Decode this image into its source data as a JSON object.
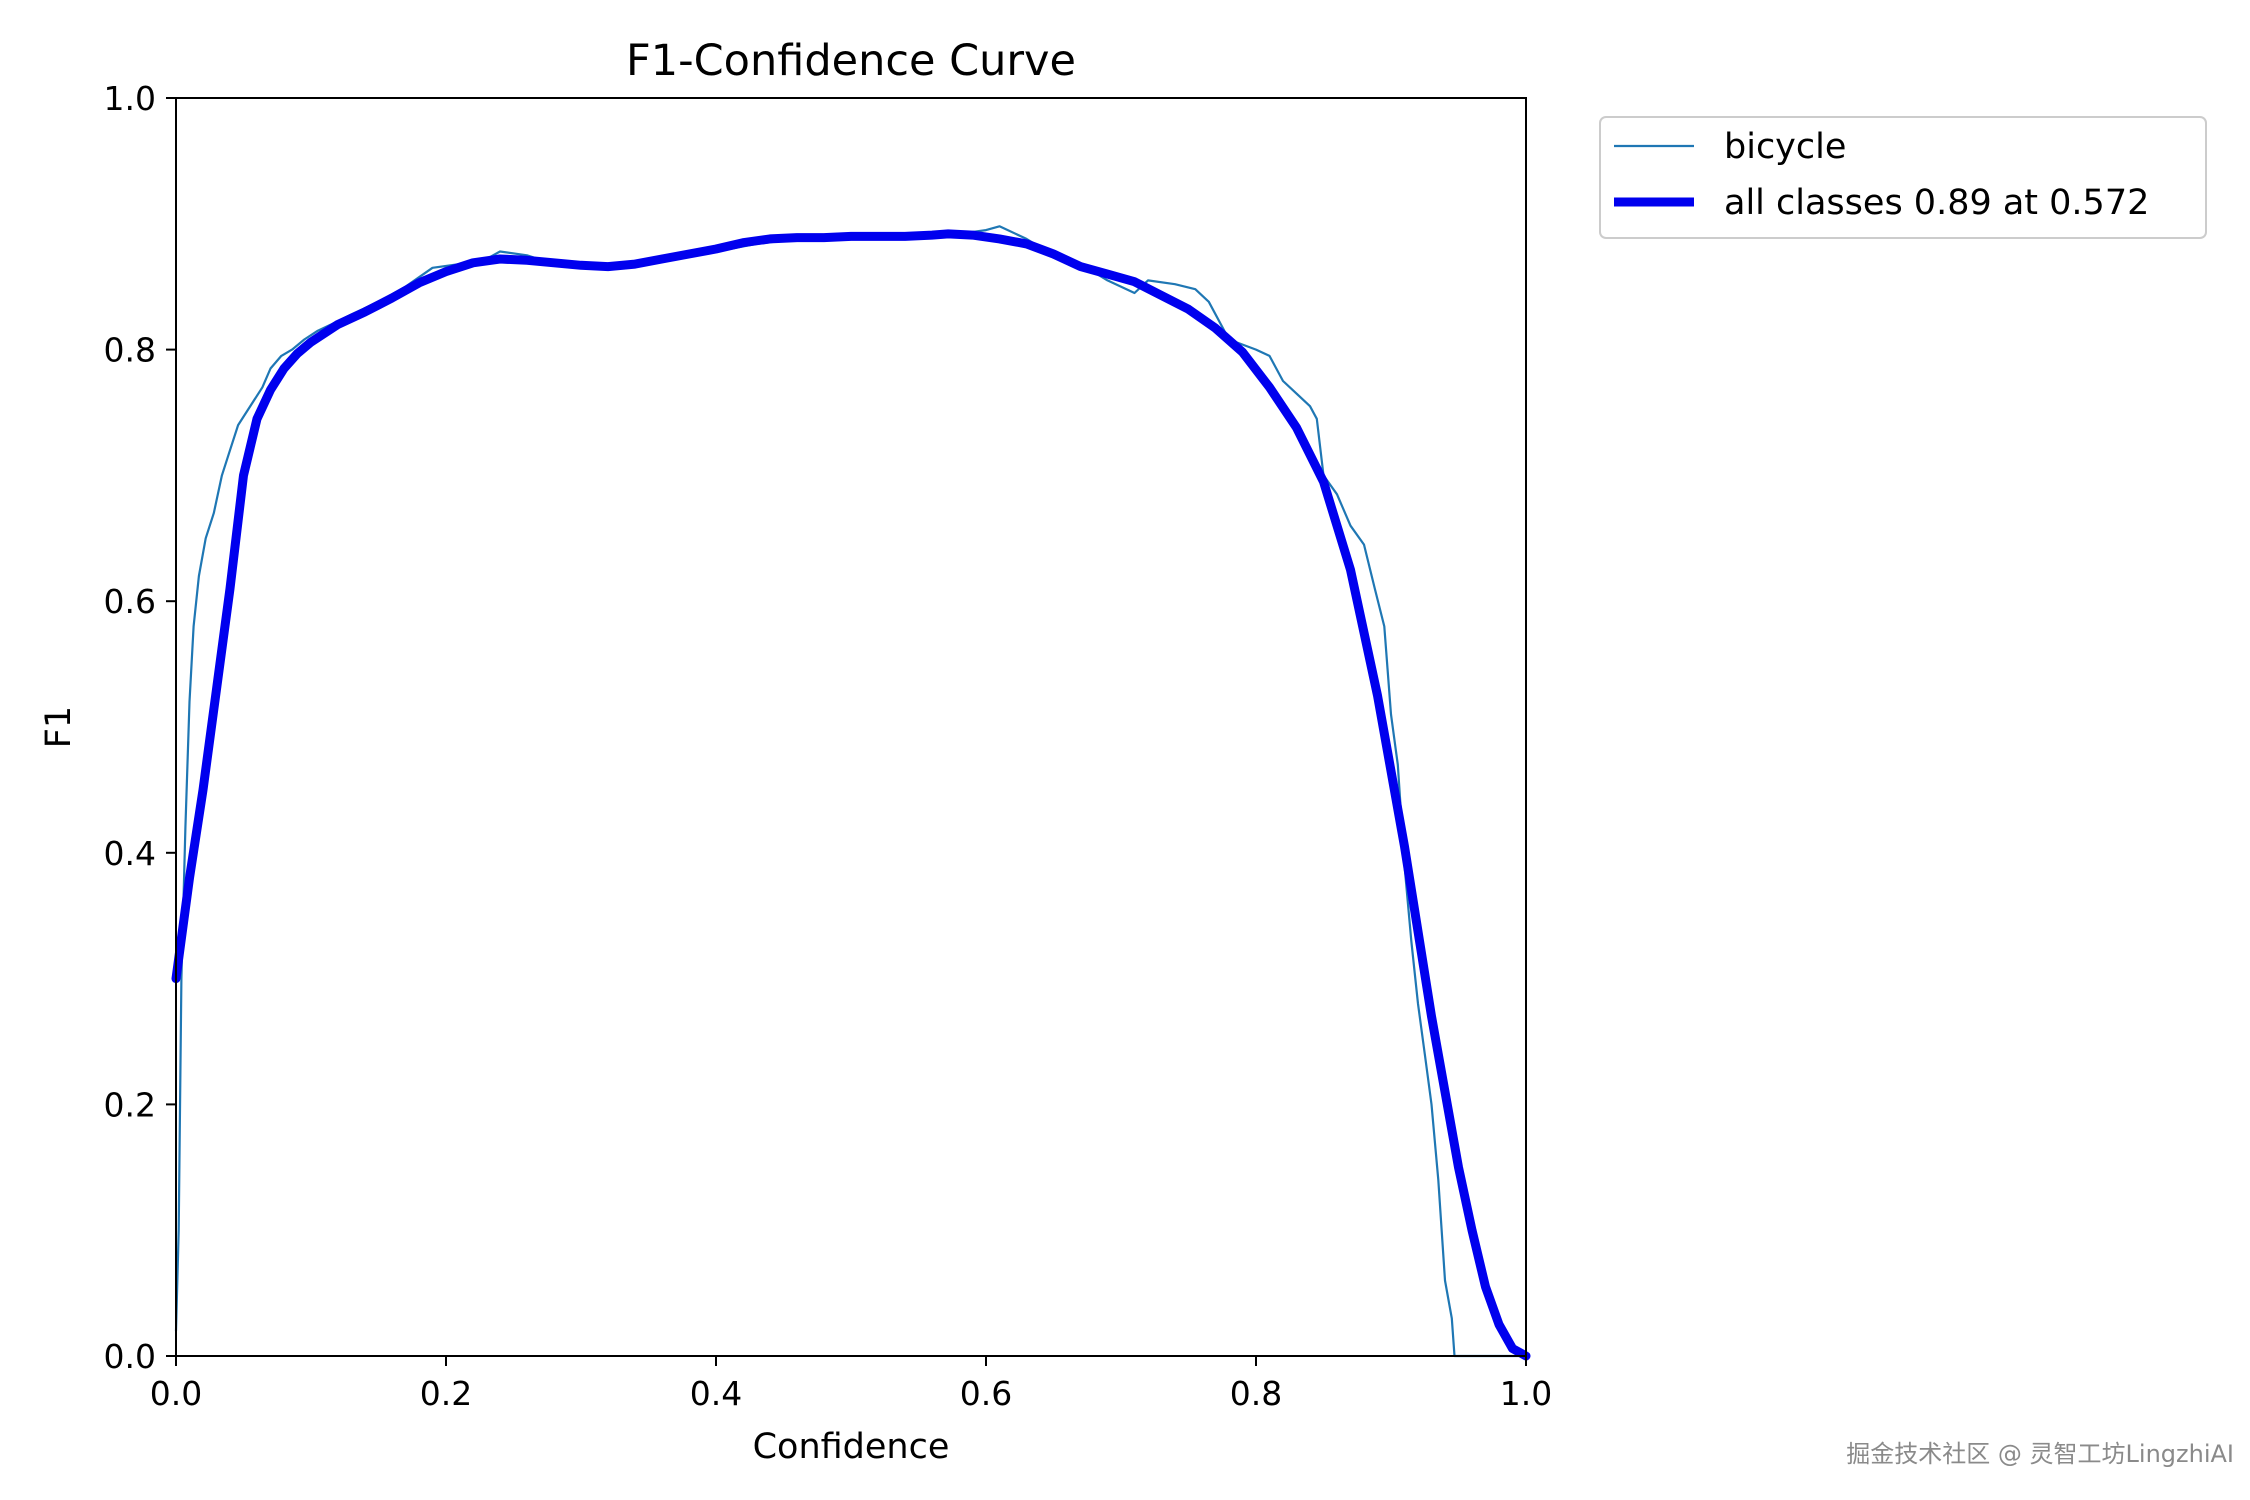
{
  "chart_data": {
    "type": "line",
    "title": "F1-Confidence Curve",
    "xlabel": "Confidence",
    "ylabel": "F1",
    "xlim": [
      0.0,
      1.0
    ],
    "ylim": [
      0.0,
      1.0
    ],
    "x_ticks": [
      "0.0",
      "0.2",
      "0.4",
      "0.6",
      "0.8",
      "1.0"
    ],
    "y_ticks": [
      "0.0",
      "0.2",
      "0.4",
      "0.6",
      "0.8",
      "1.0"
    ],
    "grid": false,
    "legend_position": "outside-top-right",
    "series": [
      {
        "name": "bicycle",
        "color": "#1f77b4",
        "points": [
          [
            0.0,
            0.02
          ],
          [
            0.002,
            0.1
          ],
          [
            0.004,
            0.3
          ],
          [
            0.007,
            0.42
          ],
          [
            0.01,
            0.52
          ],
          [
            0.013,
            0.58
          ],
          [
            0.017,
            0.62
          ],
          [
            0.022,
            0.65
          ],
          [
            0.028,
            0.67
          ],
          [
            0.034,
            0.7
          ],
          [
            0.04,
            0.72
          ],
          [
            0.046,
            0.74
          ],
          [
            0.052,
            0.75
          ],
          [
            0.058,
            0.76
          ],
          [
            0.064,
            0.77
          ],
          [
            0.07,
            0.785
          ],
          [
            0.078,
            0.795
          ],
          [
            0.086,
            0.8
          ],
          [
            0.095,
            0.808
          ],
          [
            0.105,
            0.815
          ],
          [
            0.115,
            0.82
          ],
          [
            0.13,
            0.828
          ],
          [
            0.15,
            0.838
          ],
          [
            0.17,
            0.85
          ],
          [
            0.19,
            0.865
          ],
          [
            0.21,
            0.868
          ],
          [
            0.23,
            0.872
          ],
          [
            0.24,
            0.878
          ],
          [
            0.26,
            0.875
          ],
          [
            0.28,
            0.868
          ],
          [
            0.3,
            0.865
          ],
          [
            0.32,
            0.866
          ],
          [
            0.35,
            0.868
          ],
          [
            0.38,
            0.874
          ],
          [
            0.4,
            0.878
          ],
          [
            0.43,
            0.884
          ],
          [
            0.46,
            0.888
          ],
          [
            0.49,
            0.892
          ],
          [
            0.52,
            0.89
          ],
          [
            0.55,
            0.889
          ],
          [
            0.58,
            0.892
          ],
          [
            0.6,
            0.895
          ],
          [
            0.61,
            0.898
          ],
          [
            0.63,
            0.888
          ],
          [
            0.65,
            0.875
          ],
          [
            0.67,
            0.868
          ],
          [
            0.69,
            0.855
          ],
          [
            0.71,
            0.845
          ],
          [
            0.72,
            0.855
          ],
          [
            0.74,
            0.852
          ],
          [
            0.755,
            0.848
          ],
          [
            0.765,
            0.838
          ],
          [
            0.78,
            0.808
          ],
          [
            0.8,
            0.8
          ],
          [
            0.81,
            0.795
          ],
          [
            0.82,
            0.775
          ],
          [
            0.83,
            0.765
          ],
          [
            0.84,
            0.755
          ],
          [
            0.845,
            0.745
          ],
          [
            0.85,
            0.7
          ],
          [
            0.86,
            0.685
          ],
          [
            0.87,
            0.66
          ],
          [
            0.88,
            0.645
          ],
          [
            0.888,
            0.61
          ],
          [
            0.895,
            0.58
          ],
          [
            0.9,
            0.51
          ],
          [
            0.905,
            0.47
          ],
          [
            0.91,
            0.39
          ],
          [
            0.915,
            0.33
          ],
          [
            0.92,
            0.28
          ],
          [
            0.925,
            0.24
          ],
          [
            0.93,
            0.2
          ],
          [
            0.935,
            0.14
          ],
          [
            0.94,
            0.06
          ],
          [
            0.945,
            0.03
          ],
          [
            0.947,
            0.0
          ],
          [
            1.0,
            0.0
          ]
        ]
      },
      {
        "name": "all classes 0.89 at 0.572",
        "color": "#0000ee",
        "points": [
          [
            0.0,
            0.3
          ],
          [
            0.01,
            0.38
          ],
          [
            0.02,
            0.45
          ],
          [
            0.03,
            0.53
          ],
          [
            0.04,
            0.61
          ],
          [
            0.05,
            0.7
          ],
          [
            0.06,
            0.745
          ],
          [
            0.07,
            0.768
          ],
          [
            0.08,
            0.785
          ],
          [
            0.09,
            0.797
          ],
          [
            0.1,
            0.806
          ],
          [
            0.12,
            0.82
          ],
          [
            0.14,
            0.83
          ],
          [
            0.16,
            0.841
          ],
          [
            0.18,
            0.853
          ],
          [
            0.2,
            0.862
          ],
          [
            0.22,
            0.869
          ],
          [
            0.24,
            0.872
          ],
          [
            0.26,
            0.871
          ],
          [
            0.28,
            0.869
          ],
          [
            0.3,
            0.867
          ],
          [
            0.32,
            0.866
          ],
          [
            0.34,
            0.868
          ],
          [
            0.36,
            0.872
          ],
          [
            0.38,
            0.876
          ],
          [
            0.4,
            0.88
          ],
          [
            0.42,
            0.885
          ],
          [
            0.44,
            0.888
          ],
          [
            0.46,
            0.889
          ],
          [
            0.48,
            0.889
          ],
          [
            0.5,
            0.89
          ],
          [
            0.52,
            0.89
          ],
          [
            0.54,
            0.89
          ],
          [
            0.56,
            0.891
          ],
          [
            0.572,
            0.892
          ],
          [
            0.59,
            0.891
          ],
          [
            0.61,
            0.888
          ],
          [
            0.63,
            0.884
          ],
          [
            0.65,
            0.876
          ],
          [
            0.67,
            0.866
          ],
          [
            0.69,
            0.86
          ],
          [
            0.71,
            0.854
          ],
          [
            0.73,
            0.843
          ],
          [
            0.75,
            0.832
          ],
          [
            0.77,
            0.817
          ],
          [
            0.79,
            0.798
          ],
          [
            0.81,
            0.77
          ],
          [
            0.83,
            0.738
          ],
          [
            0.85,
            0.695
          ],
          [
            0.87,
            0.625
          ],
          [
            0.89,
            0.525
          ],
          [
            0.91,
            0.405
          ],
          [
            0.93,
            0.27
          ],
          [
            0.95,
            0.15
          ],
          [
            0.96,
            0.1
          ],
          [
            0.97,
            0.055
          ],
          [
            0.98,
            0.025
          ],
          [
            0.99,
            0.006
          ],
          [
            1.0,
            0.0
          ]
        ]
      }
    ]
  },
  "watermark": "掘金技术社区 @ 灵智工坊LingzhiAI"
}
